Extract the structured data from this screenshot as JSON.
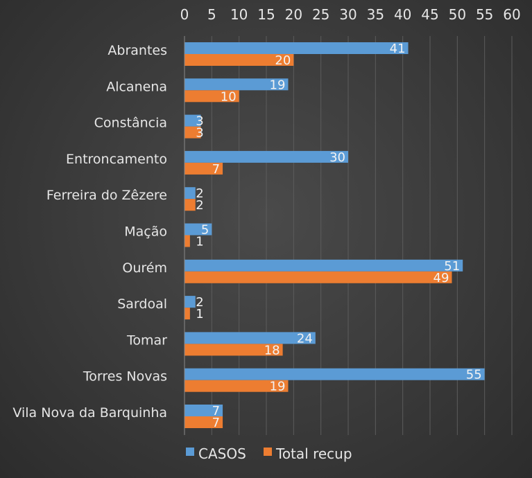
{
  "chart_data": {
    "type": "bar",
    "orientation": "horizontal",
    "categories": [
      "Abrantes",
      "Alcanena",
      "Constância",
      "Entroncamento",
      "Ferreira do Zêzere",
      "Mação",
      "Ourém",
      "Sardoal",
      "Tomar",
      "Torres Novas",
      "Vila Nova da Barquinha"
    ],
    "series": [
      {
        "name": "CASOS",
        "values": [
          41,
          19,
          3,
          30,
          2,
          5,
          51,
          2,
          24,
          55,
          7
        ],
        "color": "#5b9bd5"
      },
      {
        "name": "Total recup",
        "values": [
          20,
          10,
          3,
          7,
          2,
          1,
          49,
          1,
          18,
          19,
          7
        ],
        "color": "#ed7d31"
      }
    ],
    "xlim": [
      0,
      60
    ],
    "xticks": [
      "0",
      "5",
      "10",
      "15",
      "20",
      "25",
      "30",
      "35",
      "40",
      "45",
      "50",
      "55",
      "60"
    ],
    "x_axis_position": "top",
    "grid": true,
    "legend": "bottom",
    "data_labels": true
  }
}
